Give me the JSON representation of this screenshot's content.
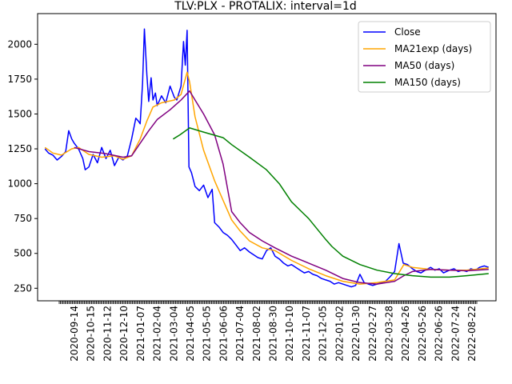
{
  "chart_data": {
    "type": "line",
    "title": "TLV:PLX - PROTALIX: interval=1d",
    "xlabel": "",
    "ylabel": "",
    "ylim": [
      160,
      2220
    ],
    "yticks": [
      250,
      500,
      750,
      1000,
      1250,
      1500,
      1750,
      2000
    ],
    "xticks": [
      "2020-09-14",
      "2020-10-15",
      "2020-11-12",
      "2020-12-10",
      "2021-01-07",
      "2021-02-04",
      "2021-03-04",
      "2021-04-05",
      "2021-05-05",
      "2021-06-06",
      "2021-07-04",
      "2021-08-02",
      "2021-08-30",
      "2021-10-10",
      "2021-11-07",
      "2021-12-05",
      "2022-01-02",
      "2022-01-30",
      "2022-02-27",
      "2022-03-28",
      "2022-04-26",
      "2022-05-26",
      "2022-06-26",
      "2022-07-24",
      "2022-08-22"
    ],
    "grid": false,
    "legend_position": "top-right",
    "series": [
      {
        "name": "Close",
        "color": "#0000ff",
        "points": [
          [
            "2020-09-01",
            1250
          ],
          [
            "2020-09-07",
            1220
          ],
          [
            "2020-09-14",
            1205
          ],
          [
            "2020-09-21",
            1170
          ],
          [
            "2020-09-28",
            1195
          ],
          [
            "2020-10-05",
            1230
          ],
          [
            "2020-10-10",
            1380
          ],
          [
            "2020-10-15",
            1320
          ],
          [
            "2020-10-19",
            1290
          ],
          [
            "2020-10-26",
            1250
          ],
          [
            "2020-11-02",
            1180
          ],
          [
            "2020-11-06",
            1100
          ],
          [
            "2020-11-12",
            1120
          ],
          [
            "2020-11-19",
            1210
          ],
          [
            "2020-11-26",
            1150
          ],
          [
            "2020-12-03",
            1260
          ],
          [
            "2020-12-10",
            1180
          ],
          [
            "2020-12-17",
            1240
          ],
          [
            "2020-12-24",
            1130
          ],
          [
            "2020-12-31",
            1190
          ],
          [
            "2021-01-07",
            1170
          ],
          [
            "2021-01-14",
            1200
          ],
          [
            "2021-01-21",
            1320
          ],
          [
            "2021-01-28",
            1470
          ],
          [
            "2021-02-01",
            1450
          ],
          [
            "2021-02-04",
            1430
          ],
          [
            "2021-02-08",
            1720
          ],
          [
            "2021-02-11",
            2110
          ],
          [
            "2021-02-15",
            1780
          ],
          [
            "2021-02-18",
            1590
          ],
          [
            "2021-02-22",
            1760
          ],
          [
            "2021-02-25",
            1600
          ],
          [
            "2021-03-01",
            1650
          ],
          [
            "2021-03-04",
            1560
          ],
          [
            "2021-03-11",
            1630
          ],
          [
            "2021-03-18",
            1580
          ],
          [
            "2021-03-25",
            1700
          ],
          [
            "2021-04-01",
            1620
          ],
          [
            "2021-04-05",
            1600
          ],
          [
            "2021-04-12",
            1700
          ],
          [
            "2021-04-16",
            2020
          ],
          [
            "2021-04-19",
            1850
          ],
          [
            "2021-04-22",
            2100
          ],
          [
            "2021-04-25",
            1120
          ],
          [
            "2021-04-29",
            1080
          ],
          [
            "2021-05-05",
            980
          ],
          [
            "2021-05-12",
            950
          ],
          [
            "2021-05-19",
            990
          ],
          [
            "2021-05-26",
            900
          ],
          [
            "2021-06-02",
            960
          ],
          [
            "2021-06-06",
            720
          ],
          [
            "2021-06-13",
            690
          ],
          [
            "2021-06-20",
            650
          ],
          [
            "2021-06-27",
            630
          ],
          [
            "2021-07-04",
            600
          ],
          [
            "2021-07-11",
            560
          ],
          [
            "2021-07-18",
            520
          ],
          [
            "2021-07-25",
            540
          ],
          [
            "2021-08-02",
            510
          ],
          [
            "2021-08-09",
            490
          ],
          [
            "2021-08-16",
            470
          ],
          [
            "2021-08-23",
            460
          ],
          [
            "2021-08-30",
            520
          ],
          [
            "2021-09-06",
            540
          ],
          [
            "2021-09-13",
            480
          ],
          [
            "2021-09-20",
            460
          ],
          [
            "2021-09-27",
            430
          ],
          [
            "2021-10-04",
            410
          ],
          [
            "2021-10-10",
            420
          ],
          [
            "2021-10-17",
            400
          ],
          [
            "2021-10-24",
            380
          ],
          [
            "2021-10-31",
            360
          ],
          [
            "2021-11-07",
            370
          ],
          [
            "2021-11-14",
            350
          ],
          [
            "2021-11-21",
            340
          ],
          [
            "2021-11-28",
            320
          ],
          [
            "2021-12-05",
            310
          ],
          [
            "2021-12-12",
            300
          ],
          [
            "2021-12-19",
            280
          ],
          [
            "2021-12-26",
            290
          ],
          [
            "2022-01-02",
            280
          ],
          [
            "2022-01-09",
            270
          ],
          [
            "2022-01-16",
            260
          ],
          [
            "2022-01-23",
            270
          ],
          [
            "2022-01-30",
            350
          ],
          [
            "2022-02-06",
            290
          ],
          [
            "2022-02-13",
            280
          ],
          [
            "2022-02-20",
            270
          ],
          [
            "2022-02-27",
            280
          ],
          [
            "2022-03-06",
            290
          ],
          [
            "2022-03-13",
            300
          ],
          [
            "2022-03-20",
            330
          ],
          [
            "2022-03-28",
            370
          ],
          [
            "2022-04-04",
            570
          ],
          [
            "2022-04-11",
            430
          ],
          [
            "2022-04-18",
            420
          ],
          [
            "2022-04-26",
            390
          ],
          [
            "2022-05-03",
            370
          ],
          [
            "2022-05-10",
            360
          ],
          [
            "2022-05-17",
            380
          ],
          [
            "2022-05-26",
            400
          ],
          [
            "2022-06-02",
            380
          ],
          [
            "2022-06-09",
            390
          ],
          [
            "2022-06-16",
            360
          ],
          [
            "2022-06-26",
            380
          ],
          [
            "2022-07-03",
            390
          ],
          [
            "2022-07-10",
            370
          ],
          [
            "2022-07-17",
            380
          ],
          [
            "2022-07-24",
            370
          ],
          [
            "2022-07-31",
            390
          ],
          [
            "2022-08-07",
            380
          ],
          [
            "2022-08-14",
            400
          ],
          [
            "2022-08-22",
            410
          ],
          [
            "2022-08-29",
            400
          ]
        ]
      },
      {
        "name": "MA21exp (days)",
        "color": "#ffa500",
        "points": [
          [
            "2020-09-01",
            1260
          ],
          [
            "2020-09-14",
            1220
          ],
          [
            "2020-09-28",
            1205
          ],
          [
            "2020-10-15",
            1250
          ],
          [
            "2020-10-26",
            1260
          ],
          [
            "2020-11-12",
            1210
          ],
          [
            "2020-12-03",
            1190
          ],
          [
            "2020-12-24",
            1200
          ],
          [
            "2021-01-07",
            1175
          ],
          [
            "2021-01-21",
            1200
          ],
          [
            "2021-02-04",
            1320
          ],
          [
            "2021-02-15",
            1450
          ],
          [
            "2021-02-25",
            1550
          ],
          [
            "2021-03-11",
            1580
          ],
          [
            "2021-04-01",
            1600
          ],
          [
            "2021-04-12",
            1640
          ],
          [
            "2021-04-22",
            1800
          ],
          [
            "2021-04-26",
            1730
          ],
          [
            "2021-05-05",
            1480
          ],
          [
            "2021-05-19",
            1240
          ],
          [
            "2021-06-06",
            1020
          ],
          [
            "2021-06-20",
            880
          ],
          [
            "2021-07-04",
            740
          ],
          [
            "2021-07-18",
            660
          ],
          [
            "2021-08-02",
            590
          ],
          [
            "2021-08-23",
            540
          ],
          [
            "2021-09-13",
            520
          ],
          [
            "2021-10-10",
            450
          ],
          [
            "2021-11-07",
            390
          ],
          [
            "2021-12-05",
            340
          ],
          [
            "2022-01-02",
            300
          ],
          [
            "2022-01-30",
            280
          ],
          [
            "2022-02-27",
            290
          ],
          [
            "2022-03-28",
            310
          ],
          [
            "2022-04-12",
            420
          ],
          [
            "2022-04-26",
            400
          ],
          [
            "2022-05-26",
            385
          ],
          [
            "2022-06-26",
            380
          ],
          [
            "2022-07-24",
            380
          ],
          [
            "2022-08-29",
            395
          ]
        ]
      },
      {
        "name": "MA50 (days)",
        "color": "#800080",
        "points": [
          [
            "2020-10-19",
            1260
          ],
          [
            "2020-11-12",
            1230
          ],
          [
            "2020-12-10",
            1215
          ],
          [
            "2021-01-07",
            1190
          ],
          [
            "2021-01-21",
            1200
          ],
          [
            "2021-02-04",
            1290
          ],
          [
            "2021-02-18",
            1380
          ],
          [
            "2021-03-04",
            1460
          ],
          [
            "2021-03-25",
            1530
          ],
          [
            "2021-04-12",
            1600
          ],
          [
            "2021-04-26",
            1665
          ],
          [
            "2021-05-05",
            1600
          ],
          [
            "2021-05-19",
            1500
          ],
          [
            "2021-06-06",
            1350
          ],
          [
            "2021-06-20",
            1140
          ],
          [
            "2021-07-04",
            800
          ],
          [
            "2021-07-18",
            720
          ],
          [
            "2021-08-02",
            650
          ],
          [
            "2021-08-23",
            590
          ],
          [
            "2021-09-13",
            540
          ],
          [
            "2021-10-10",
            480
          ],
          [
            "2021-11-07",
            430
          ],
          [
            "2021-12-05",
            380
          ],
          [
            "2022-01-02",
            320
          ],
          [
            "2022-01-30",
            290
          ],
          [
            "2022-02-27",
            280
          ],
          [
            "2022-03-28",
            300
          ],
          [
            "2022-04-12",
            340
          ],
          [
            "2022-04-26",
            370
          ],
          [
            "2022-05-26",
            385
          ],
          [
            "2022-06-26",
            380
          ],
          [
            "2022-07-24",
            375
          ],
          [
            "2022-08-29",
            385
          ]
        ]
      },
      {
        "name": "MA150 (days)",
        "color": "#008000",
        "points": [
          [
            "2021-03-30",
            1320
          ],
          [
            "2021-04-10",
            1350
          ],
          [
            "2021-04-26",
            1400
          ],
          [
            "2021-05-19",
            1370
          ],
          [
            "2021-06-20",
            1330
          ],
          [
            "2021-07-04",
            1280
          ],
          [
            "2021-08-02",
            1190
          ],
          [
            "2021-08-30",
            1100
          ],
          [
            "2021-09-20",
            1000
          ],
          [
            "2021-10-10",
            870
          ],
          [
            "2021-11-07",
            750
          ],
          [
            "2021-12-05",
            600
          ],
          [
            "2021-12-15",
            550
          ],
          [
            "2022-01-02",
            480
          ],
          [
            "2022-01-30",
            420
          ],
          [
            "2022-02-27",
            380
          ],
          [
            "2022-03-28",
            355
          ],
          [
            "2022-04-26",
            340
          ],
          [
            "2022-05-26",
            330
          ],
          [
            "2022-06-26",
            330
          ],
          [
            "2022-07-24",
            340
          ],
          [
            "2022-08-29",
            355
          ]
        ]
      }
    ]
  }
}
